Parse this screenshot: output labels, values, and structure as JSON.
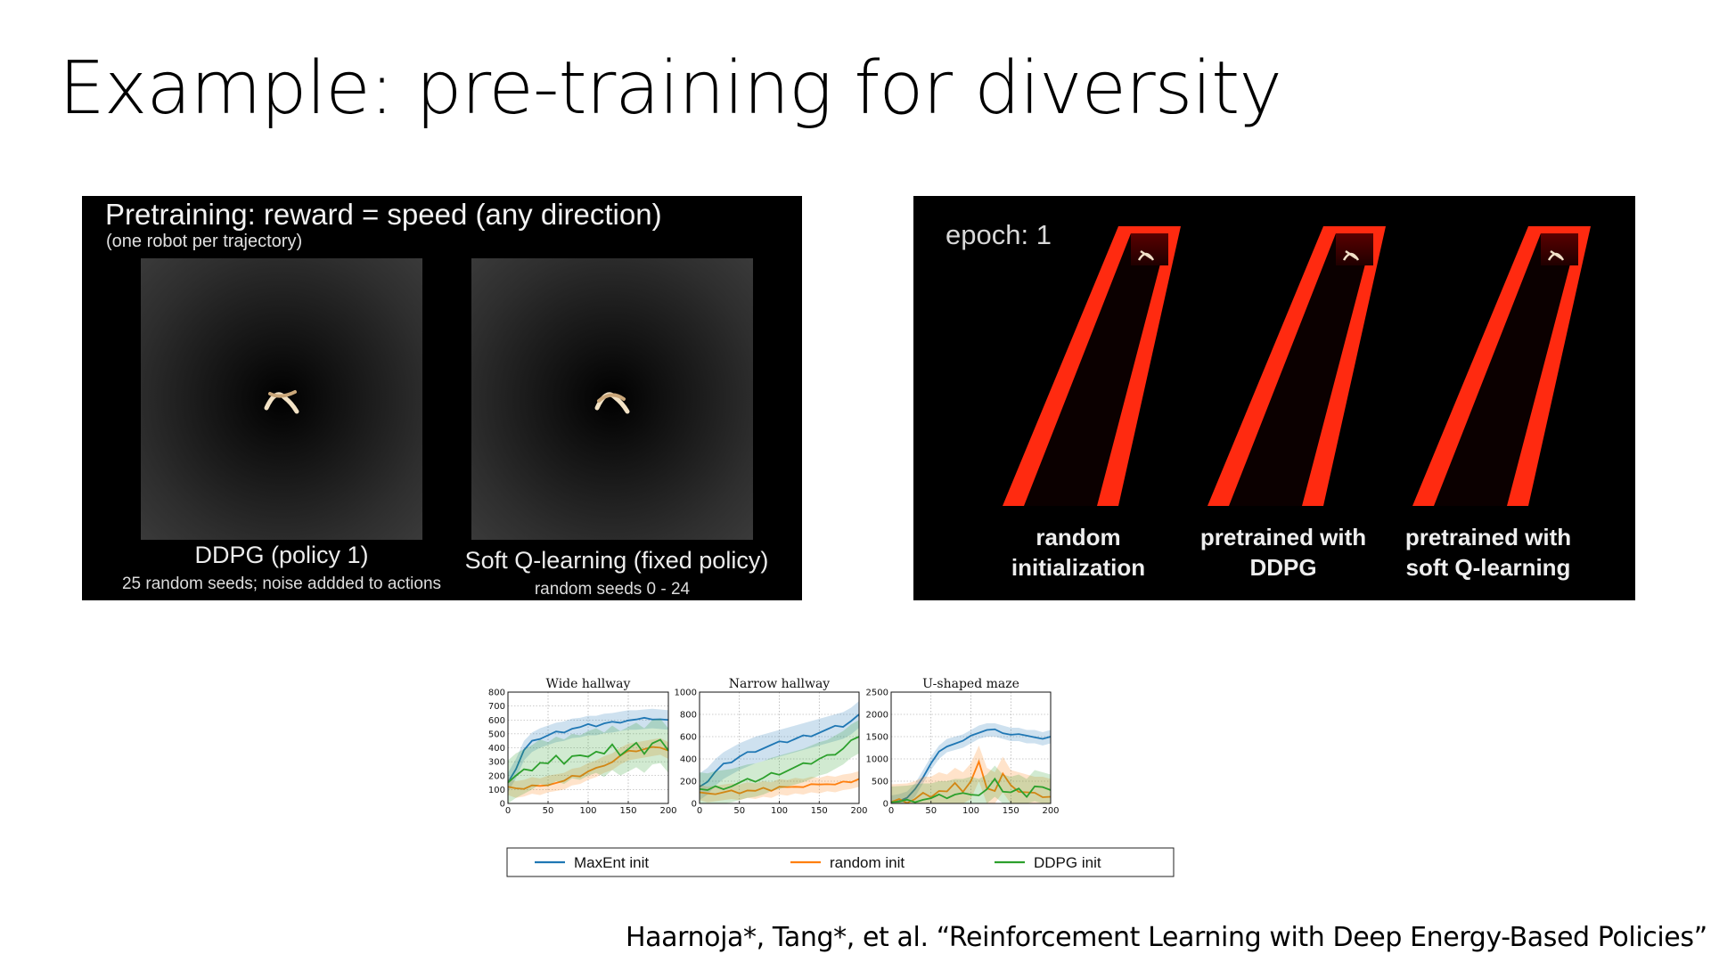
{
  "slide": {
    "title": "Example: pre-training for diversity",
    "citation": "Haarnoja*, Tang*, et al. “Reinforcement Learning with Deep Energy-Based Policies”"
  },
  "left_panel": {
    "heading": "Pretraining: reward = speed (any direction)",
    "subheading": "(one robot per trajectory)",
    "videos": [
      {
        "caption": "DDPG (policy 1)",
        "detail": "25 random seeds; noise addded to actions"
      },
      {
        "caption": "Soft Q-learning (fixed policy)",
        "detail": "random seeds 0 - 24"
      }
    ]
  },
  "right_panel": {
    "epoch_label": "epoch: 1",
    "hall_color": "#ff2a10",
    "halls": [
      {
        "line1": "random",
        "line2": "initialization"
      },
      {
        "line1": "pretrained with",
        "line2": "DDPG"
      },
      {
        "line1": "pretrained with",
        "line2": "soft Q-learning"
      }
    ]
  },
  "chart_data": [
    {
      "type": "line",
      "title": "Wide hallway",
      "xlim": [
        0,
        200
      ],
      "ylim": [
        0,
        800
      ],
      "xticks": [
        0,
        50,
        100,
        150,
        200
      ],
      "yticks": [
        0,
        100,
        200,
        300,
        400,
        500,
        600,
        700,
        800
      ],
      "grid": true,
      "x": [
        0,
        10,
        20,
        30,
        40,
        50,
        60,
        70,
        80,
        90,
        100,
        110,
        120,
        130,
        140,
        150,
        160,
        170,
        180,
        190,
        200
      ],
      "series": [
        {
          "name": "MaxEnt init",
          "color": "#1f77b4",
          "values": [
            150,
            250,
            380,
            440,
            470,
            490,
            510,
            520,
            540,
            545,
            560,
            560,
            575,
            580,
            590,
            600,
            600,
            605,
            610,
            605,
            600
          ],
          "spread": 70
        },
        {
          "name": "random init",
          "color": "#ff7f0e",
          "values": [
            120,
            100,
            110,
            130,
            120,
            140,
            150,
            160,
            190,
            200,
            230,
            250,
            280,
            300,
            340,
            370,
            380,
            390,
            400,
            410,
            380
          ],
          "spread": 60
        },
        {
          "name": "DDPG init",
          "color": "#2ca02c",
          "values": [
            150,
            200,
            230,
            260,
            300,
            280,
            320,
            300,
            340,
            330,
            360,
            380,
            350,
            400,
            360,
            390,
            420,
            380,
            440,
            450,
            380
          ],
          "spread": 160
        }
      ]
    },
    {
      "type": "line",
      "title": "Narrow hallway",
      "xlim": [
        0,
        200
      ],
      "ylim": [
        0,
        1000
      ],
      "xticks": [
        0,
        50,
        100,
        150,
        200
      ],
      "yticks": [
        0,
        200,
        400,
        600,
        800,
        1000
      ],
      "grid": true,
      "x": [
        0,
        10,
        20,
        30,
        40,
        50,
        60,
        70,
        80,
        90,
        100,
        110,
        120,
        130,
        140,
        150,
        160,
        170,
        180,
        190,
        200
      ],
      "series": [
        {
          "name": "MaxEnt init",
          "color": "#1f77b4",
          "values": [
            150,
            200,
            280,
            340,
            380,
            420,
            450,
            480,
            500,
            520,
            540,
            560,
            580,
            600,
            620,
            640,
            660,
            680,
            700,
            740,
            800
          ],
          "spread": 120
        },
        {
          "name": "random init",
          "color": "#ff7f0e",
          "values": [
            100,
            80,
            90,
            100,
            110,
            100,
            120,
            110,
            130,
            120,
            150,
            140,
            160,
            150,
            170,
            160,
            180,
            170,
            190,
            200,
            220
          ],
          "spread": 70
        },
        {
          "name": "DDPG init",
          "color": "#2ca02c",
          "values": [
            130,
            120,
            140,
            150,
            160,
            180,
            200,
            210,
            230,
            260,
            280,
            300,
            320,
            340,
            370,
            400,
            420,
            460,
            500,
            560,
            600
          ],
          "spread": 150
        }
      ]
    },
    {
      "type": "line",
      "title": "U-shaped maze",
      "xlim": [
        0,
        200
      ],
      "ylim": [
        0,
        2500
      ],
      "xticks": [
        0,
        50,
        100,
        150,
        200
      ],
      "yticks": [
        0,
        500,
        1000,
        1500,
        2000,
        2500
      ],
      "grid": true,
      "x": [
        0,
        10,
        20,
        30,
        40,
        50,
        60,
        70,
        80,
        90,
        100,
        110,
        120,
        130,
        140,
        150,
        160,
        170,
        180,
        190,
        200
      ],
      "series": [
        {
          "name": "MaxEnt init",
          "color": "#1f77b4",
          "values": [
            30,
            60,
            120,
            300,
            600,
            900,
            1150,
            1300,
            1350,
            1400,
            1500,
            1600,
            1650,
            1650,
            1600,
            1550,
            1550,
            1500,
            1500,
            1450,
            1500
          ],
          "spread": 150
        },
        {
          "name": "random init",
          "color": "#ff7f0e",
          "values": [
            30,
            40,
            50,
            100,
            200,
            200,
            300,
            250,
            400,
            300,
            500,
            900,
            400,
            300,
            650,
            350,
            300,
            250,
            200,
            200,
            150
          ],
          "spread": 400
        },
        {
          "name": "DDPG init",
          "color": "#2ca02c",
          "values": [
            30,
            40,
            50,
            80,
            100,
            100,
            150,
            150,
            200,
            200,
            250,
            200,
            300,
            500,
            300,
            250,
            300,
            200,
            400,
            350,
            300
          ],
          "spread": 350
        }
      ]
    }
  ],
  "legend": {
    "items": [
      {
        "label": "MaxEnt init",
        "color": "#1f77b4"
      },
      {
        "label": "random init",
        "color": "#ff7f0e"
      },
      {
        "label": "DDPG init",
        "color": "#2ca02c"
      }
    ]
  }
}
